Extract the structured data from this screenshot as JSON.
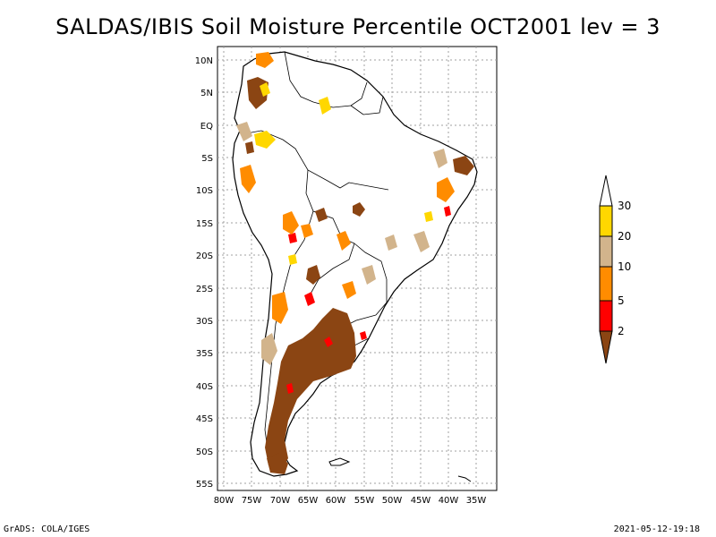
{
  "title": "SALDAS/IBIS Soil Moisture Percentile OCT2001 lev = 3",
  "footer": {
    "left": "GrADS: COLA/IGES",
    "right": "2021-05-12-19:18"
  },
  "axes": {
    "lat_labels": [
      "10N",
      "5N",
      "EQ",
      "5S",
      "10S",
      "15S",
      "20S",
      "25S",
      "30S",
      "35S",
      "40S",
      "45S",
      "50S",
      "55S"
    ],
    "lon_labels": [
      "80W",
      "75W",
      "70W",
      "65W",
      "60W",
      "55W",
      "50W",
      "45W",
      "40W",
      "35W"
    ]
  },
  "colorbar": {
    "levels": [
      "30",
      "20",
      "10",
      "5",
      "2"
    ],
    "colors": {
      "above_30": "#ffffff",
      "20_30": "#ffd700",
      "10_20": "#d2b48c",
      "5_10": "#ff8c00",
      "2_5": "#ff0000",
      "below_2": "#8b4513"
    }
  },
  "colors": {
    "coast": "#000000",
    "grid": "#a0a0a0",
    "frame": "#000000"
  }
}
